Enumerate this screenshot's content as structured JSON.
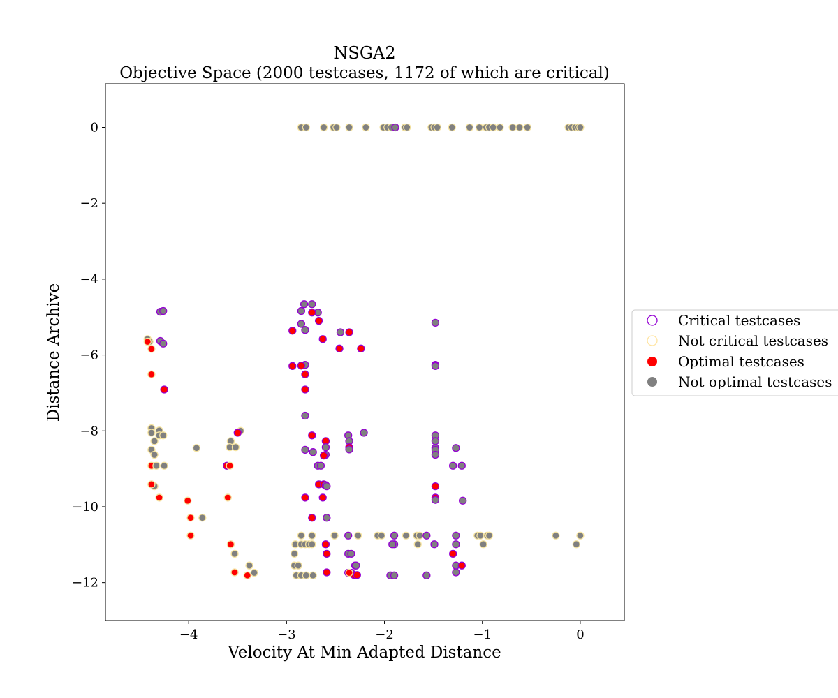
{
  "chart_data": {
    "type": "scatter",
    "title": "NSGA2",
    "subtitle": "Objective Space (2000 testcases, 1172 of which are critical)",
    "xlabel": "Velocity At Min Adapted Distance",
    "ylabel": "Distance Archive",
    "xlim": [
      -4.85,
      0.45
    ],
    "ylim": [
      -13.0,
      1.15
    ],
    "x_ticks": [
      -4,
      -3,
      -2,
      -1,
      0
    ],
    "y_ticks": [
      0,
      -2,
      -4,
      -6,
      -8,
      -10,
      -12
    ],
    "x_tick_labels": [
      "−4",
      "−3",
      "−2",
      "−1",
      "0"
    ],
    "y_tick_labels": [
      "0",
      "−2",
      "−4",
      "−6",
      "−8",
      "−10",
      "−12"
    ],
    "grid": false,
    "legend_placement": "right, outside plot",
    "legend": [
      {
        "label": "Critical testcases",
        "marker": "open-circle",
        "color": "#9400d3"
      },
      {
        "label": "Not critical testcases",
        "marker": "open-circle",
        "color": "#ffe4a0"
      },
      {
        "label": "Optimal testcases",
        "marker": "filled-circle",
        "color": "#ff0000"
      },
      {
        "label": "Not optimal testcases",
        "marker": "filled-circle",
        "color": "#808080"
      }
    ],
    "colors": {
      "critical_edge": "#9400d3",
      "noncritical_edge": "#f5e3a0",
      "optimal_fill": "#ff0000",
      "nonoptimal_fill": "#808080"
    },
    "series": [
      {
        "name": "Critical testcases",
        "points": [
          [
            -4.29,
            -4.86
          ],
          [
            -4.26,
            -4.84
          ],
          [
            -4.29,
            -5.63
          ],
          [
            -4.26,
            -5.7
          ],
          [
            -4.25,
            -6.91
          ],
          [
            -2.82,
            -4.66
          ],
          [
            -2.74,
            -4.66
          ],
          [
            -2.85,
            -4.84
          ],
          [
            -2.68,
            -4.88
          ],
          [
            -2.74,
            -4.88
          ],
          [
            -2.85,
            -5.18
          ],
          [
            -2.67,
            -5.1
          ],
          [
            -2.81,
            -5.34
          ],
          [
            -2.94,
            -5.36
          ],
          [
            -2.45,
            -5.4
          ],
          [
            -2.36,
            -5.4
          ],
          [
            -2.63,
            -5.58
          ],
          [
            -2.46,
            -5.83
          ],
          [
            -2.24,
            -5.83
          ],
          [
            -2.81,
            -6.26
          ],
          [
            -2.85,
            -6.28
          ],
          [
            -2.94,
            -6.29
          ],
          [
            -2.81,
            -6.51
          ],
          [
            -2.81,
            -6.91
          ],
          [
            -2.81,
            -7.6
          ],
          [
            -2.74,
            -8.12
          ],
          [
            -2.21,
            -8.05
          ],
          [
            -2.37,
            -8.12
          ],
          [
            -2.36,
            -8.27
          ],
          [
            -2.36,
            -8.43
          ],
          [
            -2.36,
            -8.49
          ],
          [
            -2.6,
            -8.27
          ],
          [
            -2.6,
            -8.43
          ],
          [
            -2.81,
            -8.5
          ],
          [
            -2.73,
            -8.56
          ],
          [
            -2.6,
            -8.63
          ],
          [
            -2.62,
            -8.65
          ],
          [
            -2.68,
            -8.92
          ],
          [
            -2.65,
            -8.92
          ],
          [
            -2.67,
            -9.41
          ],
          [
            -2.62,
            -9.41
          ],
          [
            -2.6,
            -9.43
          ],
          [
            -2.59,
            -9.46
          ],
          [
            -2.81,
            -9.76
          ],
          [
            -2.63,
            -9.76
          ],
          [
            -2.74,
            -10.29
          ],
          [
            -2.59,
            -10.29
          ],
          [
            -2.37,
            -10.76
          ],
          [
            -1.9,
            -10.76
          ],
          [
            -1.57,
            -10.76
          ],
          [
            -1.27,
            -10.76
          ],
          [
            -1.9,
            -10.99
          ],
          [
            -1.92,
            -10.99
          ],
          [
            -1.49,
            -10.99
          ],
          [
            -1.27,
            -10.99
          ],
          [
            -2.6,
            -10.99
          ],
          [
            -2.37,
            -11.24
          ],
          [
            -2.34,
            -11.24
          ],
          [
            -2.59,
            -11.24
          ],
          [
            -2.3,
            -11.55
          ],
          [
            -2.29,
            -11.55
          ],
          [
            -1.3,
            -11.24
          ],
          [
            -1.27,
            -11.55
          ],
          [
            -1.21,
            -11.55
          ],
          [
            -1.27,
            -11.73
          ],
          [
            -2.59,
            -11.73
          ],
          [
            -2.34,
            -11.74
          ],
          [
            -2.37,
            -11.74
          ],
          [
            -2.31,
            -11.8
          ],
          [
            -2.28,
            -11.8
          ],
          [
            -1.94,
            -11.81
          ],
          [
            -1.9,
            -11.81
          ],
          [
            -1.57,
            -11.81
          ],
          [
            -1.48,
            -5.15
          ],
          [
            -1.48,
            -6.26
          ],
          [
            -1.48,
            -6.29
          ],
          [
            -1.48,
            -8.12
          ],
          [
            -1.48,
            -8.27
          ],
          [
            -1.48,
            -8.45
          ],
          [
            -1.48,
            -8.5
          ],
          [
            -1.48,
            -8.63
          ],
          [
            -1.48,
            -9.46
          ],
          [
            -1.48,
            -9.76
          ],
          [
            -1.48,
            -9.82
          ],
          [
            -1.27,
            -8.45
          ],
          [
            -1.3,
            -8.92
          ],
          [
            -1.21,
            -8.92
          ],
          [
            -1.2,
            -9.84
          ],
          [
            -3.61,
            -8.92
          ],
          [
            -3.5,
            -8.05
          ],
          [
            -1.89,
            0.0
          ]
        ]
      },
      {
        "name": "Not critical testcases",
        "points": [
          [
            -2.85,
            0.0
          ],
          [
            -2.8,
            0.0
          ],
          [
            -2.62,
            0.0
          ],
          [
            -2.52,
            0.0
          ],
          [
            -2.49,
            0.0
          ],
          [
            -2.36,
            0.0
          ],
          [
            -2.19,
            0.0
          ],
          [
            -2.01,
            0.0
          ],
          [
            -1.97,
            0.0
          ],
          [
            -1.93,
            0.0
          ],
          [
            -1.79,
            0.0
          ],
          [
            -1.77,
            0.0
          ],
          [
            -1.52,
            0.0
          ],
          [
            -1.49,
            0.0
          ],
          [
            -1.46,
            0.0
          ],
          [
            -1.31,
            0.0
          ],
          [
            -1.13,
            0.0
          ],
          [
            -1.03,
            0.0
          ],
          [
            -0.96,
            0.0
          ],
          [
            -0.93,
            0.0
          ],
          [
            -0.89,
            0.0
          ],
          [
            -0.82,
            0.0
          ],
          [
            -0.69,
            0.0
          ],
          [
            -0.62,
            0.0
          ],
          [
            -0.54,
            0.0
          ],
          [
            -0.12,
            0.0
          ],
          [
            -0.09,
            0.0
          ],
          [
            -0.05,
            0.0
          ],
          [
            -0.02,
            0.0
          ],
          [
            0.0,
            0.0
          ],
          [
            -4.42,
            -5.58
          ],
          [
            -4.4,
            -5.65
          ],
          [
            -4.38,
            -7.93
          ],
          [
            -4.38,
            -8.05
          ],
          [
            -4.35,
            -8.27
          ],
          [
            -4.3,
            -7.99
          ],
          [
            -4.3,
            -8.12
          ],
          [
            -4.26,
            -8.12
          ],
          [
            -4.38,
            -8.5
          ],
          [
            -4.35,
            -8.63
          ],
          [
            -4.38,
            -8.92
          ],
          [
            -4.33,
            -8.92
          ],
          [
            -4.25,
            -8.92
          ],
          [
            -4.35,
            -9.46
          ],
          [
            -3.92,
            -8.45
          ],
          [
            -3.86,
            -10.29
          ],
          [
            -3.57,
            -8.27
          ],
          [
            -3.58,
            -8.43
          ],
          [
            -3.52,
            -8.43
          ],
          [
            -3.47,
            -8.0
          ],
          [
            -3.53,
            -11.24
          ],
          [
            -3.38,
            -11.55
          ],
          [
            -3.33,
            -11.74
          ],
          [
            -2.91,
            -10.99
          ],
          [
            -2.85,
            -10.76
          ],
          [
            -2.85,
            -10.99
          ],
          [
            -2.81,
            -10.99
          ],
          [
            -2.77,
            -10.99
          ],
          [
            -2.74,
            -10.99
          ],
          [
            -2.74,
            -10.76
          ],
          [
            -2.92,
            -11.24
          ],
          [
            -2.92,
            -11.55
          ],
          [
            -2.88,
            -11.55
          ],
          [
            -2.9,
            -11.81
          ],
          [
            -2.85,
            -11.81
          ],
          [
            -2.8,
            -11.81
          ],
          [
            -2.73,
            -11.81
          ],
          [
            -2.51,
            -10.76
          ],
          [
            -2.27,
            -10.76
          ],
          [
            -2.07,
            -10.76
          ],
          [
            -2.03,
            -10.76
          ],
          [
            -1.78,
            -10.76
          ],
          [
            -1.67,
            -10.76
          ],
          [
            -1.64,
            -10.76
          ],
          [
            -1.66,
            -10.99
          ],
          [
            -1.05,
            -10.76
          ],
          [
            -1.02,
            -10.76
          ],
          [
            -0.95,
            -10.76
          ],
          [
            -0.93,
            -10.76
          ],
          [
            -0.99,
            -10.99
          ],
          [
            -0.25,
            -10.76
          ],
          [
            0.0,
            -10.76
          ],
          [
            -0.04,
            -10.99
          ]
        ]
      },
      {
        "name": "Optimal testcases",
        "points": [
          [
            -4.42,
            -5.65
          ],
          [
            -4.38,
            -5.84
          ],
          [
            -4.38,
            -6.51
          ],
          [
            -4.38,
            -8.92
          ],
          [
            -4.38,
            -9.41
          ],
          [
            -4.3,
            -9.76
          ],
          [
            -4.25,
            -6.91
          ],
          [
            -4.01,
            -9.84
          ],
          [
            -3.98,
            -10.29
          ],
          [
            -3.98,
            -10.76
          ],
          [
            -3.61,
            -8.92
          ],
          [
            -3.58,
            -8.92
          ],
          [
            -3.6,
            -9.76
          ],
          [
            -3.57,
            -10.99
          ],
          [
            -3.53,
            -11.73
          ],
          [
            -3.5,
            -8.05
          ],
          [
            -3.4,
            -11.81
          ],
          [
            -2.94,
            -5.36
          ],
          [
            -2.94,
            -6.29
          ],
          [
            -2.85,
            -6.28
          ],
          [
            -2.81,
            -6.51
          ],
          [
            -2.81,
            -6.91
          ],
          [
            -2.81,
            -9.76
          ],
          [
            -2.74,
            -4.88
          ],
          [
            -2.67,
            -5.1
          ],
          [
            -2.63,
            -5.58
          ],
          [
            -2.74,
            -8.12
          ],
          [
            -2.6,
            -8.27
          ],
          [
            -2.62,
            -8.65
          ],
          [
            -2.67,
            -9.41
          ],
          [
            -2.62,
            -9.41
          ],
          [
            -2.63,
            -9.76
          ],
          [
            -2.74,
            -10.29
          ],
          [
            -2.6,
            -10.99
          ],
          [
            -2.59,
            -11.24
          ],
          [
            -2.59,
            -11.73
          ],
          [
            -2.46,
            -5.83
          ],
          [
            -2.36,
            -5.4
          ],
          [
            -2.24,
            -5.83
          ],
          [
            -2.36,
            -8.43
          ],
          [
            -2.36,
            -11.74
          ],
          [
            -2.31,
            -11.8
          ],
          [
            -2.28,
            -11.8
          ],
          [
            -1.48,
            -6.26
          ],
          [
            -1.48,
            -9.46
          ],
          [
            -1.48,
            -9.76
          ],
          [
            -1.3,
            -11.24
          ],
          [
            -1.21,
            -11.55
          ]
        ]
      },
      {
        "name": "Not optimal testcases",
        "points": "all remaining critical and not-critical points"
      }
    ]
  }
}
